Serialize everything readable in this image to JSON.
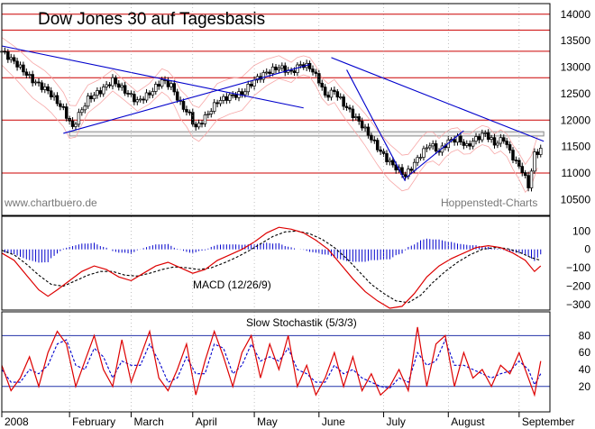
{
  "chart_data": [
    {
      "type": "candlestick",
      "title": "Dow Jones 30 auf Tagesbasis",
      "watermark_left": "www.chartbuero.de",
      "watermark_right": "Hoppenstedt-Charts",
      "ylim": [
        10200,
        14200
      ],
      "yticks": [
        10500,
        11000,
        11500,
        12000,
        12500,
        13000,
        13500,
        14000
      ],
      "resistance_lines": [
        11000,
        12000,
        12800,
        13300,
        13700,
        14000
      ],
      "support_band": [
        11700,
        11780
      ],
      "price_path": [
        [
          0,
          13300
        ],
        [
          5,
          13050
        ],
        [
          10,
          12750
        ],
        [
          15,
          12550
        ],
        [
          20,
          12200
        ],
        [
          23,
          11850
        ],
        [
          25,
          12100
        ],
        [
          28,
          12400
        ],
        [
          32,
          12550
        ],
        [
          36,
          12750
        ],
        [
          40,
          12550
        ],
        [
          44,
          12350
        ],
        [
          48,
          12500
        ],
        [
          52,
          12750
        ],
        [
          55,
          12650
        ],
        [
          58,
          12300
        ],
        [
          61,
          12100
        ],
        [
          63,
          11850
        ],
        [
          66,
          12050
        ],
        [
          70,
          12350
        ],
        [
          74,
          12450
        ],
        [
          78,
          12500
        ],
        [
          82,
          12750
        ],
        [
          86,
          12900
        ],
        [
          90,
          13000
        ],
        [
          94,
          12900
        ],
        [
          97,
          13050
        ],
        [
          100,
          13000
        ],
        [
          103,
          12750
        ],
        [
          105,
          12450
        ],
        [
          108,
          12550
        ],
        [
          111,
          12300
        ],
        [
          114,
          12100
        ],
        [
          117,
          11900
        ],
        [
          120,
          11650
        ],
        [
          123,
          11400
        ],
        [
          126,
          11200
        ],
        [
          129,
          11050
        ],
        [
          131,
          10950
        ],
        [
          133,
          11100
        ],
        [
          136,
          11350
        ],
        [
          139,
          11550
        ],
        [
          142,
          11400
        ],
        [
          145,
          11600
        ],
        [
          148,
          11650
        ],
        [
          151,
          11500
        ],
        [
          154,
          11650
        ],
        [
          157,
          11750
        ],
        [
          160,
          11550
        ],
        [
          163,
          11650
        ],
        [
          165,
          11400
        ],
        [
          167,
          11200
        ],
        [
          169,
          11050
        ],
        [
          171,
          10750
        ],
        [
          173,
          11350
        ],
        [
          175,
          11450
        ]
      ],
      "trendlines": [
        {
          "from": [
            0,
            13400
          ],
          "to": [
            98,
            12230
          ]
        },
        {
          "from": [
            20,
            11750
          ],
          "to": [
            100,
            13050
          ]
        },
        {
          "from": [
            107,
            13180
          ],
          "to": [
            176,
            11600
          ]
        },
        {
          "from": [
            112,
            12950
          ],
          "to": [
            131,
            10850
          ]
        },
        {
          "from": [
            131,
            10900
          ],
          "to": [
            150,
            11800
          ]
        }
      ]
    },
    {
      "type": "line",
      "title": "MACD (12/26/9)",
      "ylim": [
        -330,
        180
      ],
      "yticks": [
        100,
        0,
        -100,
        -200,
        -300
      ],
      "macd": [
        [
          0,
          -20
        ],
        [
          4,
          -60
        ],
        [
          8,
          -140
        ],
        [
          12,
          -220
        ],
        [
          15,
          -255
        ],
        [
          18,
          -220
        ],
        [
          22,
          -170
        ],
        [
          26,
          -120
        ],
        [
          30,
          -90
        ],
        [
          34,
          -110
        ],
        [
          38,
          -150
        ],
        [
          42,
          -170
        ],
        [
          46,
          -130
        ],
        [
          50,
          -90
        ],
        [
          54,
          -70
        ],
        [
          58,
          -100
        ],
        [
          62,
          -130
        ],
        [
          66,
          -110
        ],
        [
          70,
          -60
        ],
        [
          74,
          -30
        ],
        [
          78,
          0
        ],
        [
          82,
          40
        ],
        [
          86,
          90
        ],
        [
          90,
          120
        ],
        [
          94,
          110
        ],
        [
          98,
          90
        ],
        [
          102,
          50
        ],
        [
          106,
          0
        ],
        [
          110,
          -80
        ],
        [
          114,
          -160
        ],
        [
          118,
          -230
        ],
        [
          122,
          -280
        ],
        [
          126,
          -320
        ],
        [
          130,
          -310
        ],
        [
          134,
          -240
        ],
        [
          138,
          -150
        ],
        [
          142,
          -90
        ],
        [
          146,
          -50
        ],
        [
          150,
          -20
        ],
        [
          154,
          10
        ],
        [
          158,
          20
        ],
        [
          162,
          10
        ],
        [
          166,
          -20
        ],
        [
          170,
          -60
        ],
        [
          173,
          -120
        ],
        [
          175,
          -90
        ]
      ],
      "signal": [
        [
          0,
          -5
        ],
        [
          4,
          -30
        ],
        [
          8,
          -80
        ],
        [
          12,
          -140
        ],
        [
          16,
          -190
        ],
        [
          20,
          -200
        ],
        [
          24,
          -170
        ],
        [
          28,
          -140
        ],
        [
          32,
          -120
        ],
        [
          36,
          -120
        ],
        [
          40,
          -140
        ],
        [
          44,
          -145
        ],
        [
          48,
          -130
        ],
        [
          52,
          -110
        ],
        [
          56,
          -95
        ],
        [
          60,
          -100
        ],
        [
          64,
          -110
        ],
        [
          68,
          -100
        ],
        [
          72,
          -75
        ],
        [
          76,
          -45
        ],
        [
          80,
          -10
        ],
        [
          84,
          30
        ],
        [
          88,
          70
        ],
        [
          92,
          95
        ],
        [
          96,
          100
        ],
        [
          100,
          85
        ],
        [
          104,
          55
        ],
        [
          108,
          10
        ],
        [
          112,
          -50
        ],
        [
          116,
          -120
        ],
        [
          120,
          -190
        ],
        [
          124,
          -240
        ],
        [
          128,
          -280
        ],
        [
          132,
          -290
        ],
        [
          136,
          -250
        ],
        [
          140,
          -180
        ],
        [
          144,
          -120
        ],
        [
          148,
          -70
        ],
        [
          152,
          -30
        ],
        [
          156,
          0
        ],
        [
          160,
          10
        ],
        [
          164,
          5
        ],
        [
          168,
          -15
        ],
        [
          172,
          -45
        ],
        [
          175,
          -60
        ]
      ]
    },
    {
      "type": "line",
      "title": "Slow Stochastik (5/3/3)",
      "ylim": [
        0,
        100
      ],
      "yticks": [
        80,
        60,
        40,
        20
      ],
      "levels": [
        20,
        80
      ],
      "k": [
        [
          0,
          45
        ],
        [
          3,
          15
        ],
        [
          6,
          30
        ],
        [
          9,
          55
        ],
        [
          12,
          20
        ],
        [
          15,
          60
        ],
        [
          18,
          85
        ],
        [
          21,
          70
        ],
        [
          24,
          20
        ],
        [
          27,
          50
        ],
        [
          30,
          80
        ],
        [
          33,
          40
        ],
        [
          36,
          20
        ],
        [
          39,
          75
        ],
        [
          42,
          25
        ],
        [
          45,
          55
        ],
        [
          48,
          85
        ],
        [
          51,
          30
        ],
        [
          54,
          15
        ],
        [
          57,
          40
        ],
        [
          60,
          70
        ],
        [
          63,
          10
        ],
        [
          66,
          50
        ],
        [
          69,
          85
        ],
        [
          72,
          55
        ],
        [
          75,
          20
        ],
        [
          78,
          60
        ],
        [
          81,
          80
        ],
        [
          84,
          30
        ],
        [
          87,
          70
        ],
        [
          90,
          40
        ],
        [
          93,
          80
        ],
        [
          96,
          20
        ],
        [
          99,
          45
        ],
        [
          102,
          10
        ],
        [
          105,
          30
        ],
        [
          108,
          60
        ],
        [
          111,
          20
        ],
        [
          114,
          55
        ],
        [
          117,
          15
        ],
        [
          120,
          35
        ],
        [
          123,
          10
        ],
        [
          126,
          20
        ],
        [
          129,
          40
        ],
        [
          132,
          15
        ],
        [
          135,
          90
        ],
        [
          138,
          20
        ],
        [
          141,
          70
        ],
        [
          144,
          80
        ],
        [
          147,
          20
        ],
        [
          150,
          60
        ],
        [
          153,
          30
        ],
        [
          156,
          40
        ],
        [
          159,
          20
        ],
        [
          162,
          45
        ],
        [
          165,
          35
        ],
        [
          168,
          60
        ],
        [
          171,
          30
        ],
        [
          173,
          10
        ],
        [
          175,
          50
        ]
      ],
      "d": [
        [
          0,
          40
        ],
        [
          3,
          25
        ],
        [
          6,
          25
        ],
        [
          9,
          40
        ],
        [
          12,
          35
        ],
        [
          15,
          45
        ],
        [
          18,
          70
        ],
        [
          21,
          75
        ],
        [
          24,
          45
        ],
        [
          27,
          40
        ],
        [
          30,
          65
        ],
        [
          33,
          55
        ],
        [
          36,
          30
        ],
        [
          39,
          50
        ],
        [
          42,
          45
        ],
        [
          45,
          45
        ],
        [
          48,
          70
        ],
        [
          51,
          50
        ],
        [
          54,
          25
        ],
        [
          57,
          30
        ],
        [
          60,
          55
        ],
        [
          63,
          35
        ],
        [
          66,
          35
        ],
        [
          69,
          70
        ],
        [
          72,
          65
        ],
        [
          75,
          35
        ],
        [
          78,
          45
        ],
        [
          81,
          70
        ],
        [
          84,
          50
        ],
        [
          87,
          55
        ],
        [
          90,
          50
        ],
        [
          93,
          65
        ],
        [
          96,
          40
        ],
        [
          99,
          35
        ],
        [
          102,
          25
        ],
        [
          105,
          25
        ],
        [
          108,
          45
        ],
        [
          111,
          35
        ],
        [
          114,
          40
        ],
        [
          117,
          30
        ],
        [
          120,
          25
        ],
        [
          123,
          20
        ],
        [
          126,
          18
        ],
        [
          129,
          30
        ],
        [
          132,
          25
        ],
        [
          135,
          60
        ],
        [
          138,
          45
        ],
        [
          141,
          50
        ],
        [
          144,
          75
        ],
        [
          147,
          45
        ],
        [
          150,
          45
        ],
        [
          153,
          40
        ],
        [
          156,
          35
        ],
        [
          159,
          30
        ],
        [
          162,
          35
        ],
        [
          165,
          38
        ],
        [
          168,
          50
        ],
        [
          171,
          40
        ],
        [
          173,
          22
        ],
        [
          175,
          35
        ]
      ]
    }
  ],
  "x_axis": {
    "labels": [
      {
        "day": 0,
        "label": "2008"
      },
      {
        "day": 22,
        "label": "February"
      },
      {
        "day": 42,
        "label": "March"
      },
      {
        "day": 62,
        "label": "April"
      },
      {
        "day": 82,
        "label": "May"
      },
      {
        "day": 103,
        "label": "June"
      },
      {
        "day": 124,
        "label": "July"
      },
      {
        "day": 145,
        "label": "August"
      },
      {
        "day": 168,
        "label": "September"
      }
    ]
  },
  "colors": {
    "candle": "#000000",
    "trend": "#0000cc",
    "resistance": "#cc0000",
    "bollinger": "#f7a8a8",
    "macd": "#dd0000",
    "signal": "#000000",
    "histogram": "#0000cc",
    "stoch_k": "#dd0000",
    "stoch_d": "#0000cc",
    "grid": "#999999"
  }
}
